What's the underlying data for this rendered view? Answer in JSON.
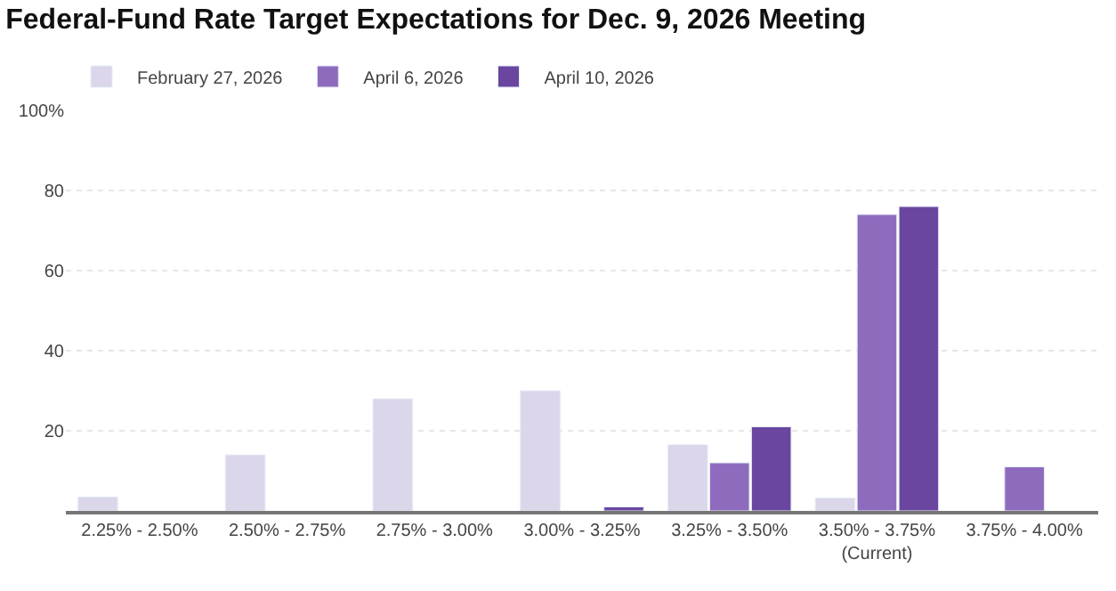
{
  "chart_data": {
    "type": "bar",
    "title": "Federal-Fund Rate Target Expectations for Dec. 9, 2026 Meeting",
    "categories": [
      "2.25% - 2.50%",
      "2.50% - 2.75%",
      "2.75% - 3.00%",
      "3.00% - 3.25%",
      "3.25% - 3.50%",
      "3.50% - 3.75%\n(Current)",
      "3.75% - 4.00%"
    ],
    "series": [
      {
        "name": "February 27, 2026",
        "color": "#dcd6ea",
        "values": [
          3.5,
          14,
          28,
          30,
          16.5,
          3.2,
          null
        ]
      },
      {
        "name": "April 6, 2026",
        "color": "#8f6bbd",
        "values": [
          null,
          null,
          null,
          null,
          12,
          74,
          11
        ]
      },
      {
        "name": "April 10, 2026",
        "color": "#6a46a0",
        "values": [
          null,
          null,
          null,
          1,
          21,
          76,
          null
        ]
      }
    ],
    "ylim": [
      0,
      100
    ],
    "yticks": [
      20,
      40,
      60,
      80,
      {
        "value": 100,
        "label": "100%"
      }
    ],
    "grid": "y",
    "legend": "top left"
  }
}
